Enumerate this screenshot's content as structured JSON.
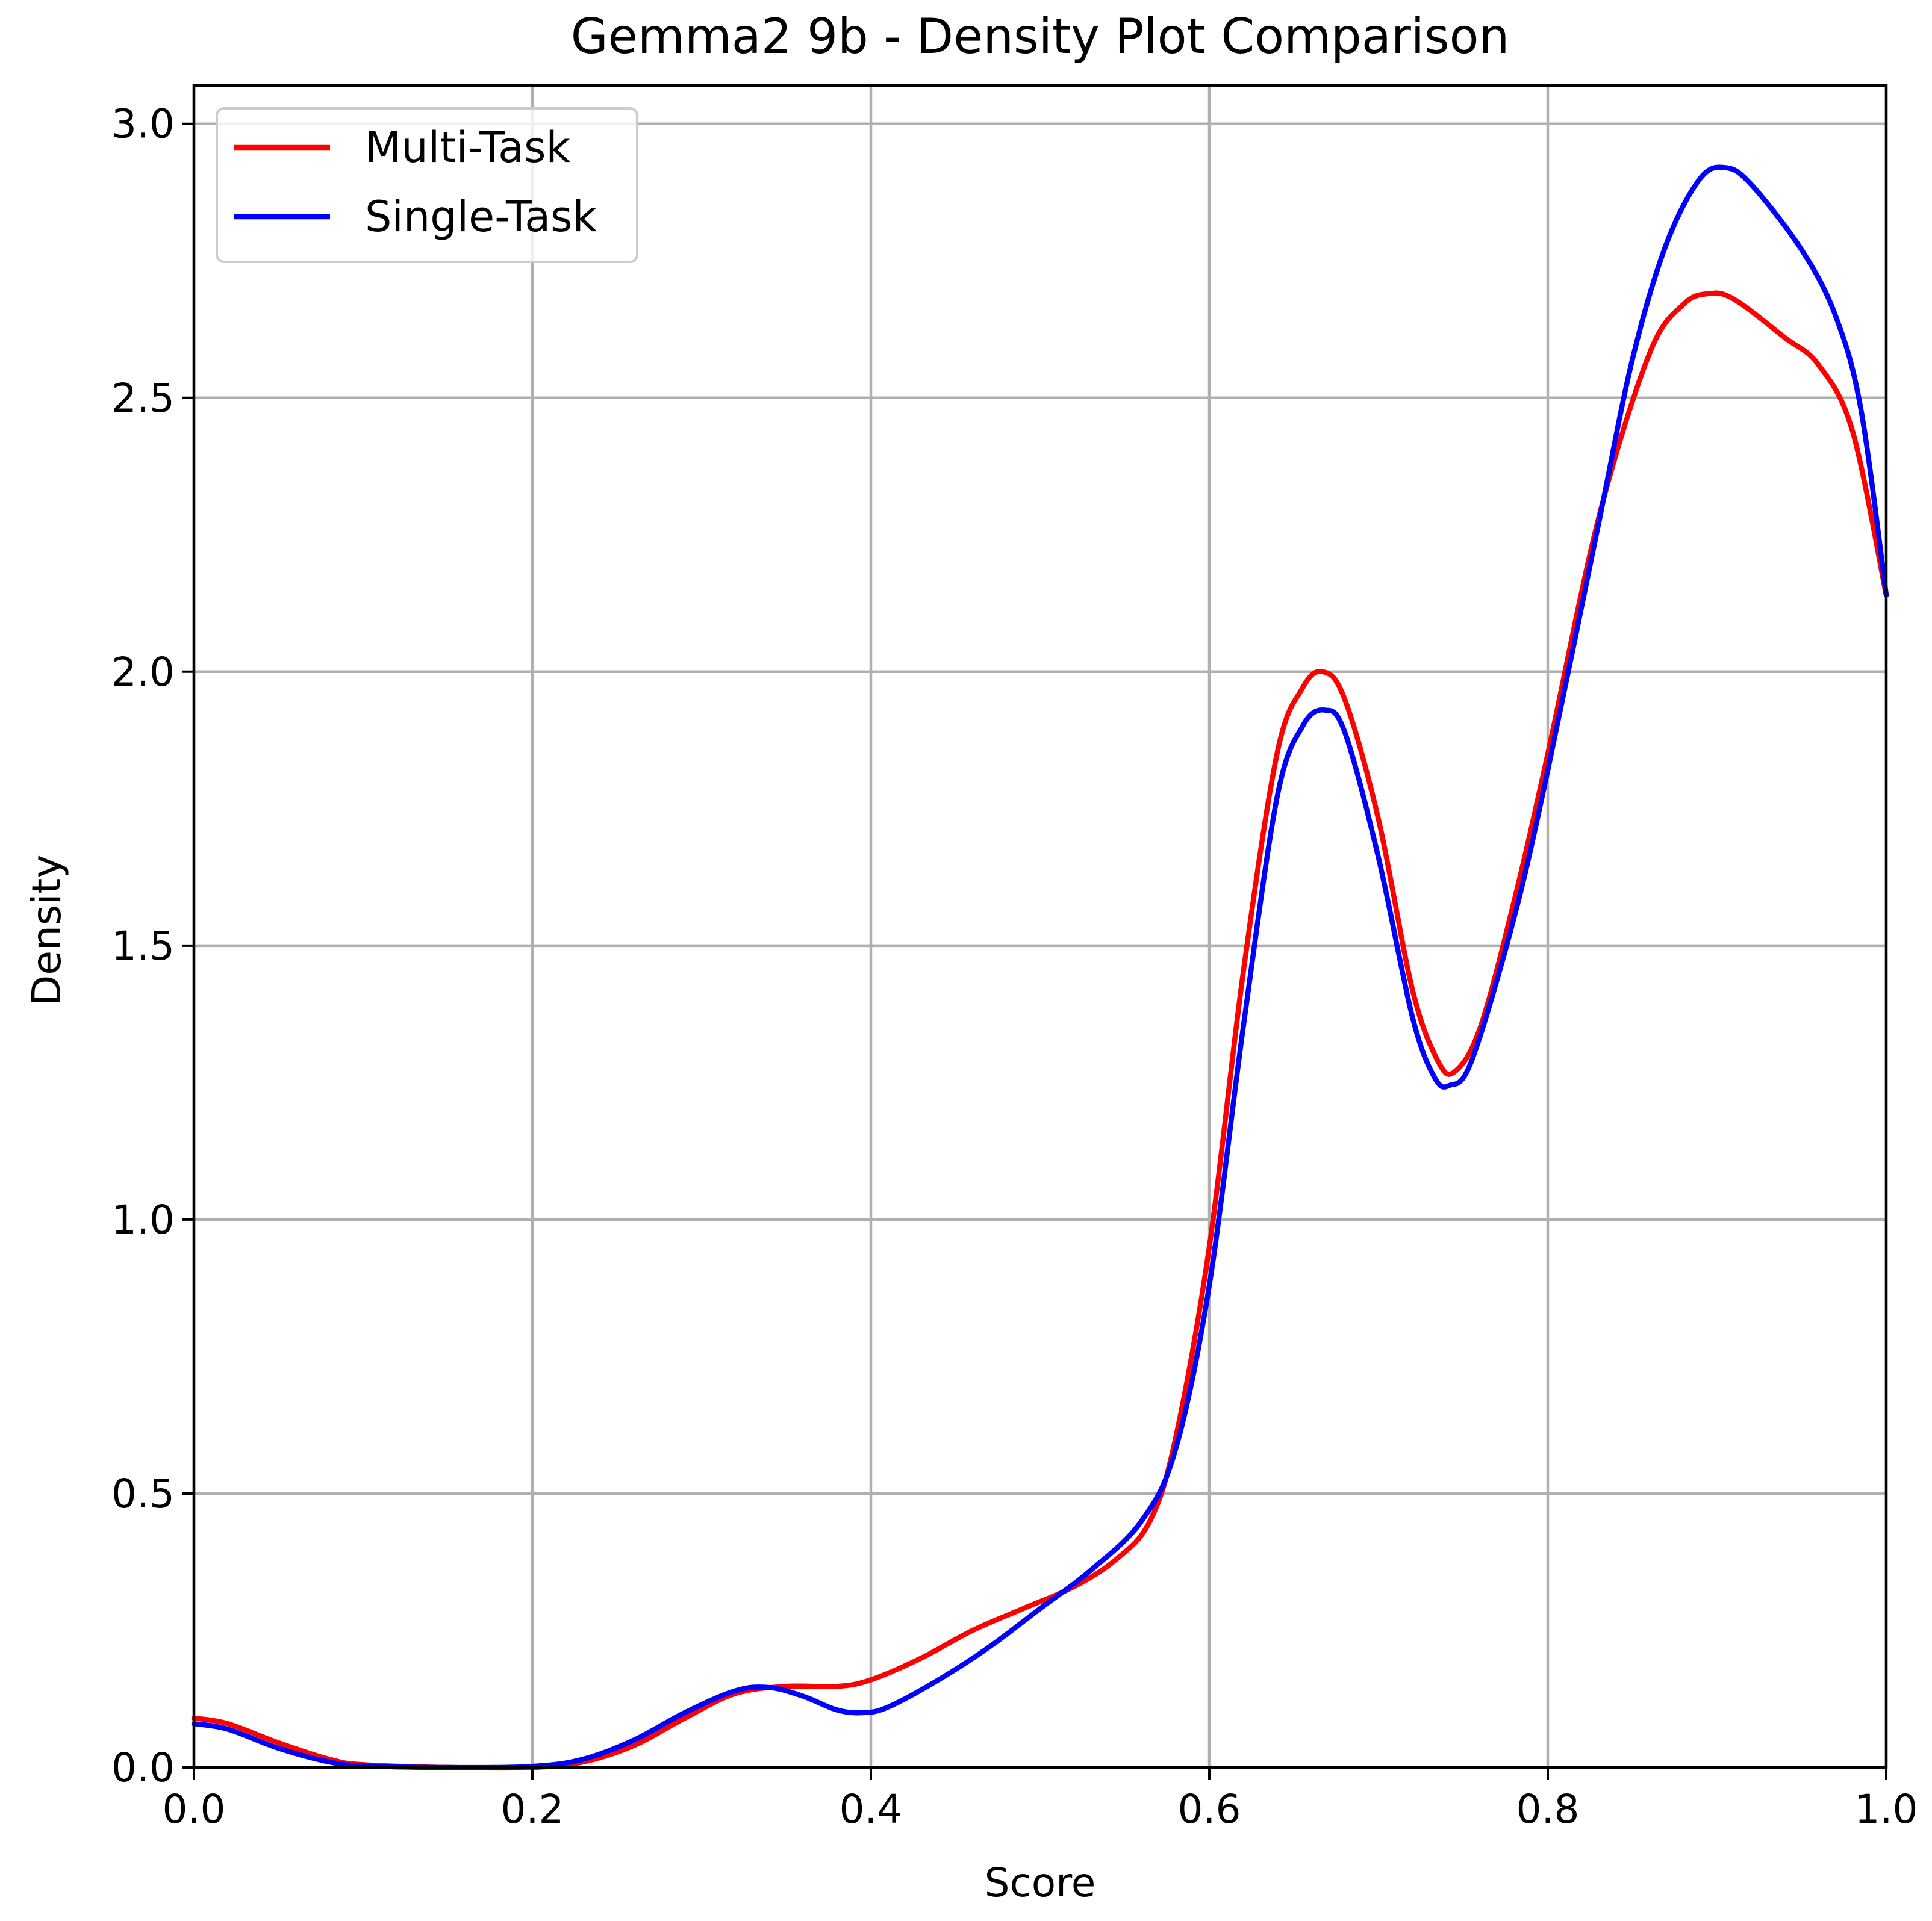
{
  "chart_data": {
    "type": "line",
    "title": "Gemma2 9b - Density Plot Comparison",
    "xlabel": "Score",
    "ylabel": "Density",
    "xlim": [
      0.0,
      1.0
    ],
    "ylim": [
      0.0,
      3.07
    ],
    "grid": true,
    "legend_position": "top-left",
    "x_ticks": [
      0.0,
      0.2,
      0.4,
      0.6,
      0.8,
      1.0
    ],
    "x_tick_labels": [
      "0.0",
      "0.2",
      "0.4",
      "0.6",
      "0.8",
      "1.0"
    ],
    "y_ticks": [
      0.0,
      0.5,
      1.0,
      1.5,
      2.0,
      2.5,
      3.0
    ],
    "y_tick_labels": [
      "0.0",
      "0.5",
      "1.0",
      "1.5",
      "2.0",
      "2.5",
      "3.0"
    ],
    "series": [
      {
        "name": "Multi-Task",
        "color": "#ff0000",
        "points": [
          [
            0.0,
            0.09
          ],
          [
            0.02,
            0.08
          ],
          [
            0.05,
            0.045
          ],
          [
            0.08,
            0.015
          ],
          [
            0.1,
            0.005
          ],
          [
            0.15,
            0.0
          ],
          [
            0.2,
            0.0
          ],
          [
            0.23,
            0.01
          ],
          [
            0.26,
            0.04
          ],
          [
            0.29,
            0.09
          ],
          [
            0.32,
            0.135
          ],
          [
            0.35,
            0.148
          ],
          [
            0.38,
            0.148
          ],
          [
            0.4,
            0.16
          ],
          [
            0.43,
            0.2
          ],
          [
            0.46,
            0.25
          ],
          [
            0.49,
            0.29
          ],
          [
            0.52,
            0.33
          ],
          [
            0.545,
            0.38
          ],
          [
            0.565,
            0.45
          ],
          [
            0.58,
            0.6
          ],
          [
            0.6,
            0.95
          ],
          [
            0.62,
            1.45
          ],
          [
            0.64,
            1.85
          ],
          [
            0.655,
            1.97
          ],
          [
            0.667,
            2.0
          ],
          [
            0.68,
            1.95
          ],
          [
            0.7,
            1.73
          ],
          [
            0.72,
            1.42
          ],
          [
            0.735,
            1.29
          ],
          [
            0.745,
            1.27
          ],
          [
            0.76,
            1.35
          ],
          [
            0.78,
            1.58
          ],
          [
            0.8,
            1.85
          ],
          [
            0.83,
            2.28
          ],
          [
            0.86,
            2.58
          ],
          [
            0.88,
            2.67
          ],
          [
            0.895,
            2.69
          ],
          [
            0.91,
            2.68
          ],
          [
            0.94,
            2.61
          ],
          [
            0.96,
            2.56
          ],
          [
            0.98,
            2.44
          ],
          [
            1.0,
            2.14
          ]
        ]
      },
      {
        "name": "Single-Task",
        "color": "#0000ff",
        "points": [
          [
            0.0,
            0.08
          ],
          [
            0.02,
            0.07
          ],
          [
            0.05,
            0.035
          ],
          [
            0.08,
            0.01
          ],
          [
            0.1,
            0.003
          ],
          [
            0.15,
            0.0
          ],
          [
            0.2,
            0.002
          ],
          [
            0.23,
            0.015
          ],
          [
            0.26,
            0.05
          ],
          [
            0.29,
            0.1
          ],
          [
            0.32,
            0.14
          ],
          [
            0.34,
            0.146
          ],
          [
            0.36,
            0.13
          ],
          [
            0.38,
            0.105
          ],
          [
            0.395,
            0.1
          ],
          [
            0.41,
            0.11
          ],
          [
            0.44,
            0.16
          ],
          [
            0.47,
            0.22
          ],
          [
            0.5,
            0.29
          ],
          [
            0.53,
            0.36
          ],
          [
            0.56,
            0.45
          ],
          [
            0.58,
            0.58
          ],
          [
            0.6,
            0.88
          ],
          [
            0.62,
            1.35
          ],
          [
            0.64,
            1.77
          ],
          [
            0.655,
            1.9
          ],
          [
            0.668,
            1.93
          ],
          [
            0.68,
            1.89
          ],
          [
            0.7,
            1.66
          ],
          [
            0.72,
            1.37
          ],
          [
            0.733,
            1.26
          ],
          [
            0.742,
            1.245
          ],
          [
            0.755,
            1.29
          ],
          [
            0.78,
            1.55
          ],
          [
            0.8,
            1.82
          ],
          [
            0.83,
            2.27
          ],
          [
            0.85,
            2.57
          ],
          [
            0.87,
            2.78
          ],
          [
            0.89,
            2.9
          ],
          [
            0.905,
            2.92
          ],
          [
            0.92,
            2.89
          ],
          [
            0.95,
            2.77
          ],
          [
            0.97,
            2.65
          ],
          [
            0.985,
            2.48
          ],
          [
            1.0,
            2.14
          ]
        ]
      }
    ]
  }
}
